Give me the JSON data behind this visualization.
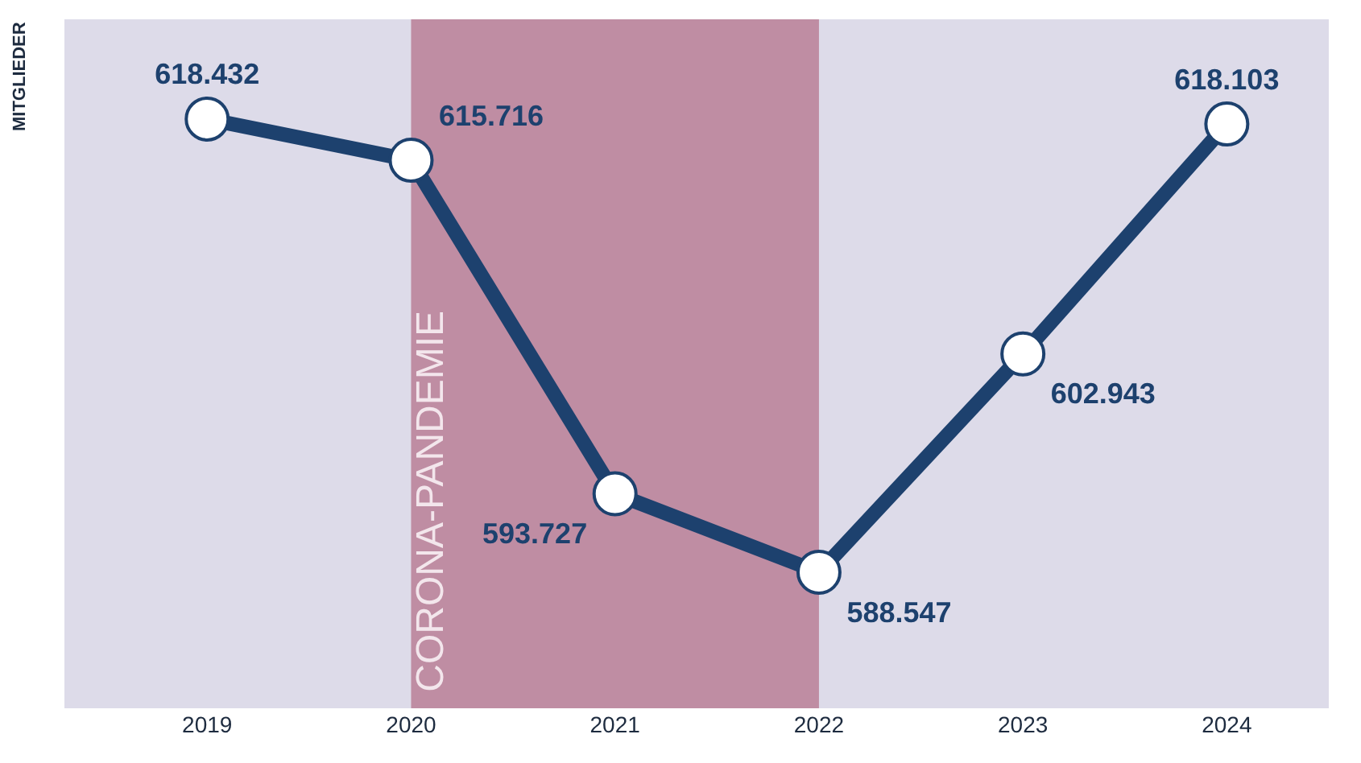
{
  "chart_data": {
    "type": "line",
    "ylabel": "MITGLIEDER",
    "categories": [
      "2019",
      "2020",
      "2021",
      "2022",
      "2023",
      "2024"
    ],
    "series": [
      {
        "color": "#1d416e",
        "values": [
          618432,
          615716,
          593727,
          588547,
          602943,
          618103
        ],
        "value_labels": [
          "618.432",
          "615.716",
          "593.727",
          "588.547",
          "602.943",
          "618.103"
        ]
      }
    ],
    "bands": [
      {
        "axis": "x",
        "from": "2020",
        "to": "2022",
        "label": "CORONA-PANDEMIE",
        "color": "#bf8da3"
      }
    ],
    "marker": "circle",
    "line_style": "solid",
    "grid": false,
    "legend": false,
    "tick_labels": "x"
  }
}
